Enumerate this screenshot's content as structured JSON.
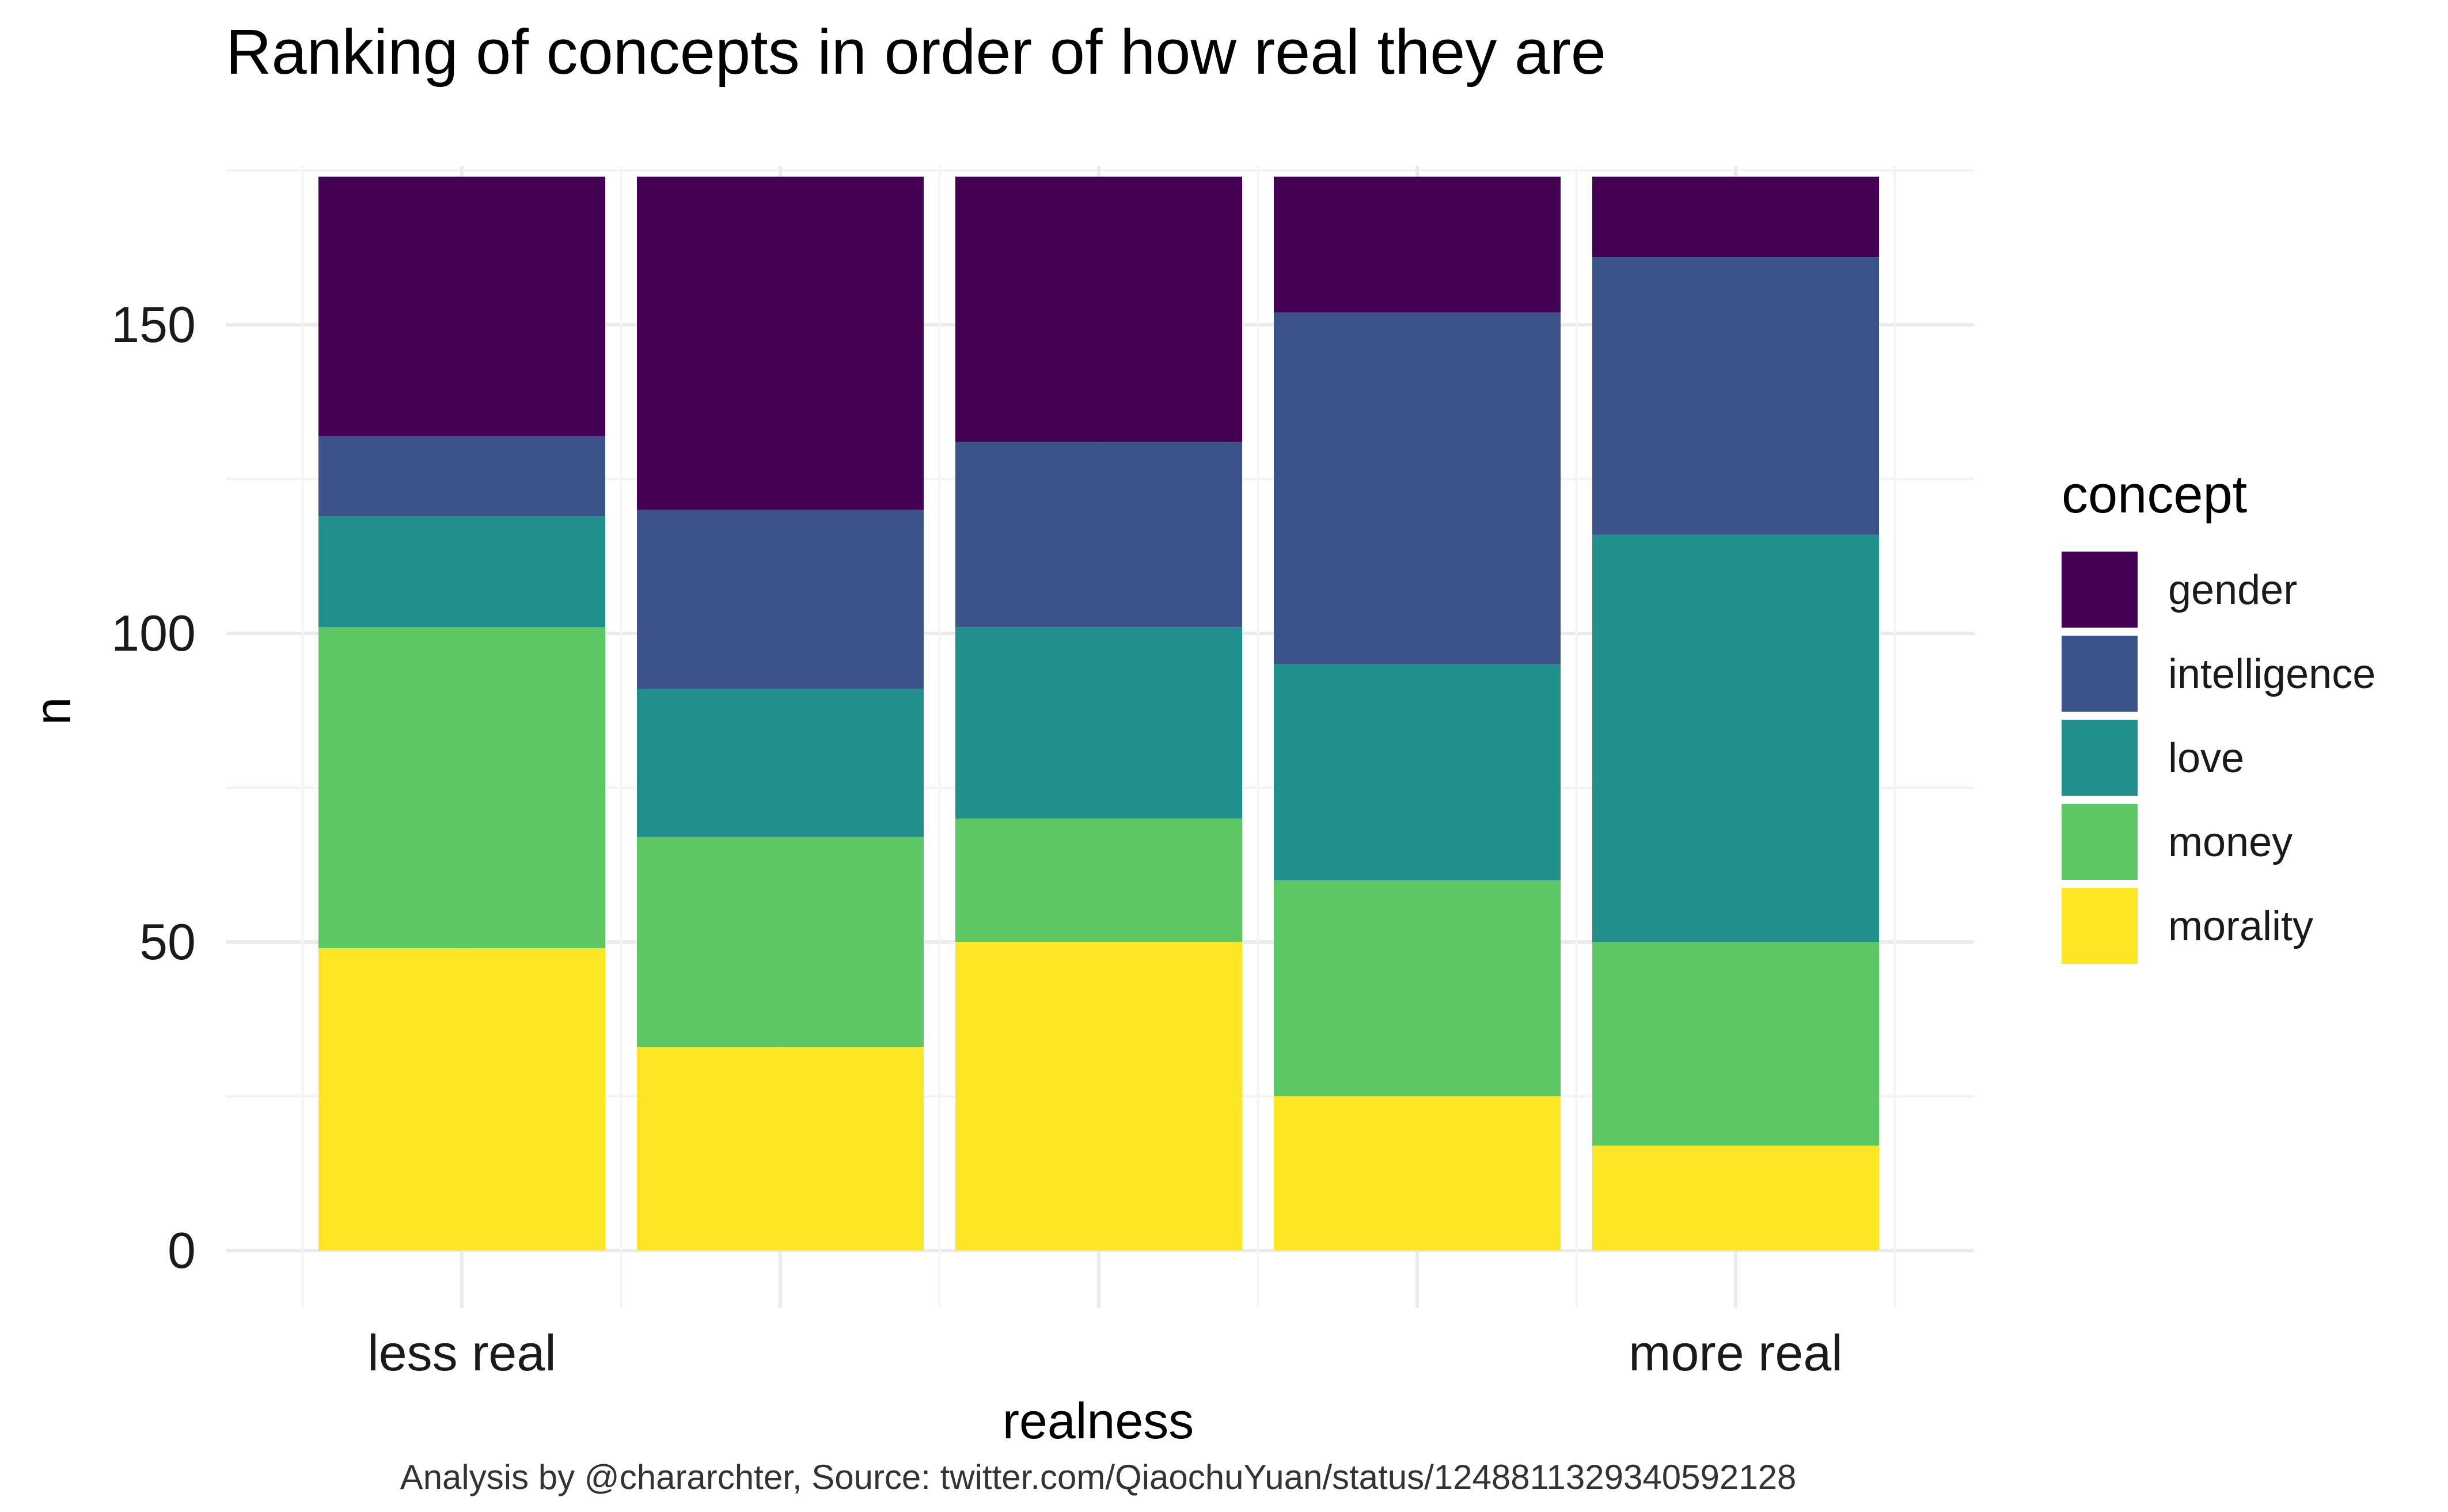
{
  "chart_data": {
    "type": "bar",
    "stacked": true,
    "title": "Ranking of concepts in order of how real they are",
    "xlabel": "realness",
    "ylabel": "n",
    "caption": "Analysis by @chararchter, Source: twitter.com/QiaochuYuan/status/1248811329340592128",
    "categories": [
      "1",
      "2",
      "3",
      "4",
      "5"
    ],
    "x_tick_labels": [
      "less real",
      "",
      "",
      "",
      "more real"
    ],
    "y_ticks": [
      0,
      50,
      100,
      150
    ],
    "y_tick_labels": [
      "0",
      "50",
      "100",
      "150"
    ],
    "ylim": [
      0,
      174
    ],
    "grid": true,
    "legend": {
      "title": "concept",
      "placement": "right",
      "entries": [
        "gender",
        "intelligence",
        "love",
        "money",
        "morality"
      ]
    },
    "stack_order_bottom_to_top": [
      "morality",
      "money",
      "love",
      "intelligence",
      "gender"
    ],
    "series": [
      {
        "name": "gender",
        "color": "#440154",
        "values": [
          42,
          54,
          43,
          22,
          13
        ]
      },
      {
        "name": "intelligence",
        "color": "#3B528B",
        "values": [
          13,
          29,
          30,
          57,
          45
        ]
      },
      {
        "name": "love",
        "color": "#21908C",
        "values": [
          18,
          24,
          31,
          35,
          66
        ]
      },
      {
        "name": "money",
        "color": "#5DC863",
        "values": [
          52,
          34,
          20,
          35,
          33
        ]
      },
      {
        "name": "morality",
        "color": "#FDE725",
        "values": [
          49,
          33,
          50,
          25,
          17
        ]
      }
    ]
  }
}
